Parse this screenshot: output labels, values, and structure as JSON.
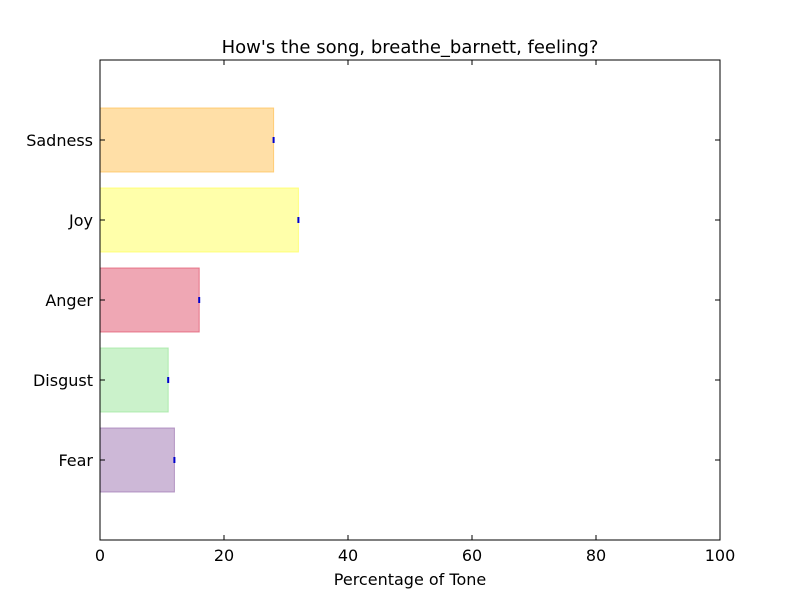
{
  "chart_data": {
    "type": "bar",
    "orientation": "horizontal",
    "title": "How's the song, breathe_barnett, feeling?",
    "xlabel": "Percentage of Tone",
    "ylabel": "",
    "xlim": [
      0,
      100
    ],
    "xticks": [
      0,
      20,
      40,
      60,
      80,
      100
    ],
    "grid": false,
    "categories": [
      "Fear",
      "Disgust",
      "Anger",
      "Joy",
      "Sadness"
    ],
    "values": [
      12,
      11,
      16,
      32,
      28
    ],
    "colors": [
      "#9b72b0",
      "#98e598",
      "#e0506a",
      "#ffff55",
      "#ffbf50"
    ],
    "error_marker_color": "#0000cc"
  }
}
